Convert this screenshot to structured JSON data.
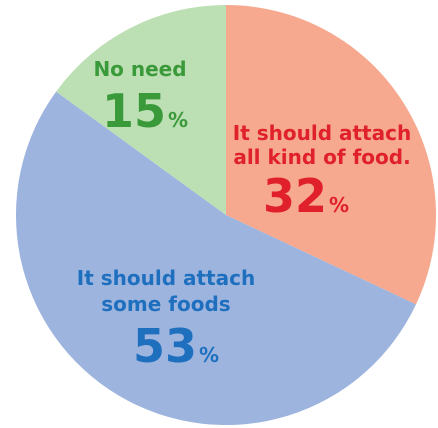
{
  "chart_data": {
    "type": "pie",
    "title": "",
    "slices": [
      {
        "label_lines": [
          "It should attach",
          "all kind of food."
        ],
        "value": 32,
        "unit": "%",
        "color": "#f6a98f",
        "text_color": "#e0202a"
      },
      {
        "label_lines": [
          "It should attach",
          "some foods"
        ],
        "value": 53,
        "unit": "%",
        "color": "#9db4df",
        "text_color": "#1f6fbf"
      },
      {
        "label_lines": [
          "No need"
        ],
        "value": 15,
        "unit": "%",
        "color": "#bddfb4",
        "text_color": "#3a9a3a"
      }
    ],
    "start_angle_deg": 0,
    "direction": "clockwise"
  }
}
